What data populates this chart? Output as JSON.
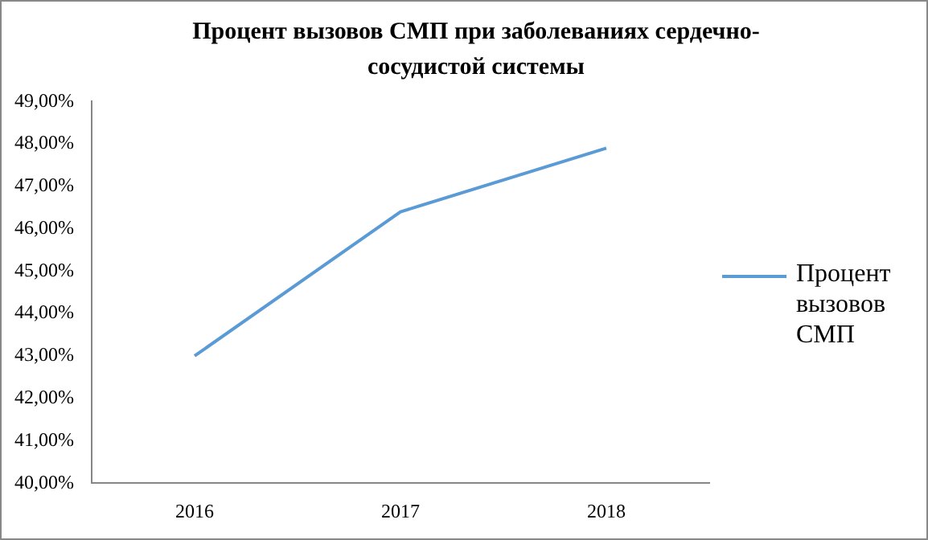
{
  "chart_data": {
    "type": "line",
    "title": "Процент  вызовов СМП при заболеваниях сердечно-сосудистой системы",
    "categories": [
      "2016",
      "2017",
      "2018"
    ],
    "series": [
      {
        "name": "Процент вызовов СМП",
        "color": "#5b9bd5",
        "values": [
          43.0,
          46.4,
          47.9
        ]
      }
    ],
    "ylim": [
      40,
      49
    ],
    "yticks": [
      {
        "value": 40,
        "label": "40,00%"
      },
      {
        "value": 41,
        "label": "41,00%"
      },
      {
        "value": 42,
        "label": "42,00%"
      },
      {
        "value": 43,
        "label": "43,00%"
      },
      {
        "value": 44,
        "label": "44,00%"
      },
      {
        "value": 45,
        "label": "45,00%"
      },
      {
        "value": 46,
        "label": "46,00%"
      },
      {
        "value": 47,
        "label": "47,00%"
      },
      {
        "value": 48,
        "label": "48,00%"
      },
      {
        "value": 49,
        "label": "49,00%"
      }
    ],
    "legend": "right",
    "marker": "none",
    "line_style": "solid"
  }
}
